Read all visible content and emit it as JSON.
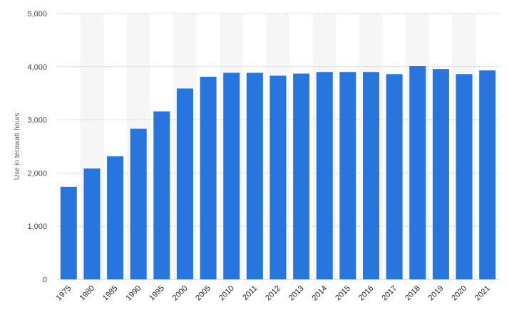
{
  "chart_data": {
    "type": "bar",
    "categories": [
      "1975",
      "1980",
      "1985",
      "1990",
      "1995",
      "2000",
      "2005",
      "2010",
      "2011",
      "2012",
      "2013",
      "2014",
      "2015",
      "2016",
      "2017",
      "2018",
      "2019",
      "2020",
      "2021"
    ],
    "values": [
      1740,
      2085,
      2315,
      2835,
      3160,
      3590,
      3810,
      3885,
      3885,
      3830,
      3870,
      3900,
      3900,
      3900,
      3860,
      4010,
      3955,
      3860,
      3930
    ],
    "xlabel": "",
    "ylabel": "Use in terawatt hours",
    "ylim": [
      0,
      5000
    ],
    "yticks": [
      "0",
      "1,000",
      "2,000",
      "3,000",
      "4,000",
      "5,000"
    ],
    "grid": true,
    "bar_color": "#2876dd",
    "band_color": "#f6f6f6"
  }
}
